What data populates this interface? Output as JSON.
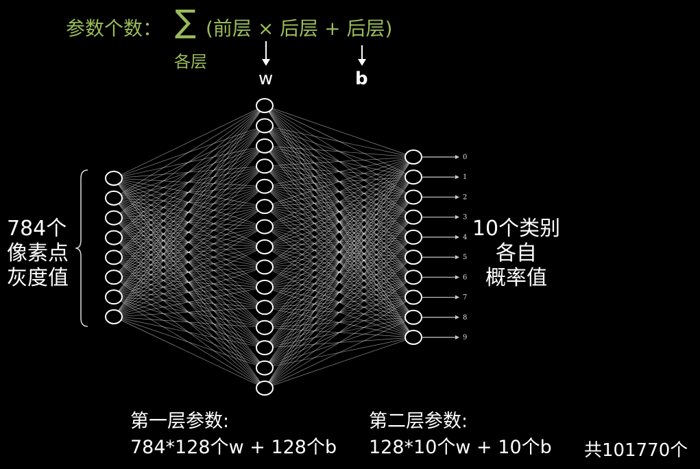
{
  "formula": {
    "label": "参数个数：",
    "sigma": "∑",
    "sigma_sub": "各层",
    "body": "(前层 × 后层 + 后层)",
    "w_label": "w",
    "b_label": "b"
  },
  "left_label": [
    "784个",
    "像素点",
    "灰度值"
  ],
  "right_label": [
    "10个类别",
    "各自",
    "概率值"
  ],
  "network": {
    "input_nodes_drawn": 8,
    "hidden_nodes_drawn": 15,
    "output_nodes": 10,
    "output_labels": [
      "0",
      "1",
      "2",
      "3",
      "4",
      "5",
      "6",
      "7",
      "8",
      "9"
    ]
  },
  "layer1": {
    "title": "第一层参数:",
    "detail": "784*128个w + 128个b"
  },
  "layer2": {
    "title": "第二层参数:",
    "detail": "128*10个w + 10个b"
  },
  "total": "共101770个",
  "colors": {
    "formula": "#9bbb59",
    "text": "#ffffff",
    "background": "#000000"
  }
}
